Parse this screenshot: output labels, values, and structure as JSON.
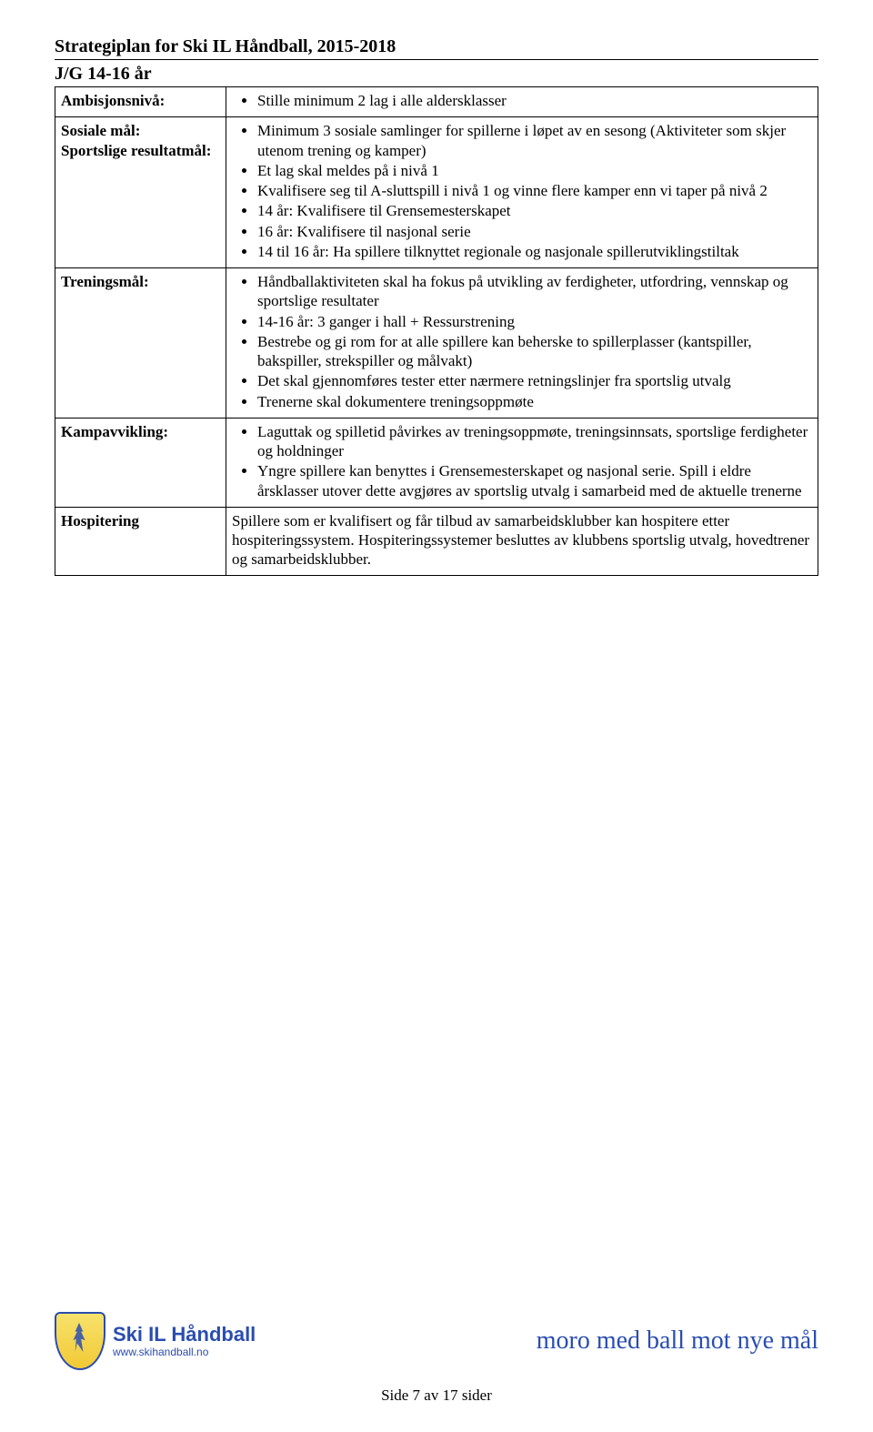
{
  "doc_title": "Strategiplan for Ski IL Håndball, 2015-2018",
  "section_title": "J/G 14-16 år",
  "rows": [
    {
      "label": "Ambisjonsnivå:",
      "type": "bullets",
      "items": [
        "Stille minimum 2 lag i alle aldersklasser"
      ]
    },
    {
      "label_combined": "Sosiale mål:\nSportslige resultatmål:",
      "type": "bullets",
      "items": [
        "Minimum 3 sosiale samlinger for spillerne i løpet av en sesong (Aktiviteter som skjer utenom trening og kamper)",
        "Et lag skal meldes på i nivå 1",
        "Kvalifisere seg til A-sluttspill i nivå 1 og vinne flere kamper enn vi taper på nivå 2",
        "14 år: Kvalifisere til Grensemesterskapet",
        "16 år: Kvalifisere til nasjonal serie",
        "14 til 16 år: Ha spillere tilknyttet regionale og nasjonale spillerutviklingstiltak"
      ]
    },
    {
      "label": "Treningsmål:",
      "type": "bullets",
      "items": [
        "Håndballaktiviteten skal ha fokus på utvikling av ferdigheter, utfordring, vennskap og sportslige resultater",
        "14-16 år: 3 ganger i hall + Ressurstrening",
        "Bestrebe og gi rom for at alle spillere kan beherske to spillerplasser (kantspiller, bakspiller, strekspiller og målvakt)",
        "Det skal gjennomføres tester etter nærmere retningslinjer fra sportslig utvalg",
        "Trenerne skal dokumentere treningsoppmøte"
      ]
    },
    {
      "label": "Kampavvikling:",
      "type": "bullets",
      "items": [
        "Laguttak og spilletid påvirkes av treningsoppmøte, treningsinnsats, sportslige ferdigheter og holdninger",
        "Yngre spillere kan benyttes i Grensemesterskapet og nasjonal serie. Spill i eldre årsklasser utover dette avgjøres av sportslig utvalg i samarbeid med de aktuelle trenerne"
      ]
    },
    {
      "label": "Hospitering",
      "type": "text",
      "text": "Spillere som er kvalifisert og får tilbud av samarbeidsklubber kan hospitere etter hospiteringssystem. Hospiteringssystemer besluttes av klubbens sportslig utvalg, hovedtrener og samarbeidsklubber."
    }
  ],
  "logo": {
    "title": "Ski IL Håndball",
    "url": "www.skihandball.no"
  },
  "slogan": "moro med ball mot nye mål",
  "page_number": "Side 7 av 17 sider"
}
